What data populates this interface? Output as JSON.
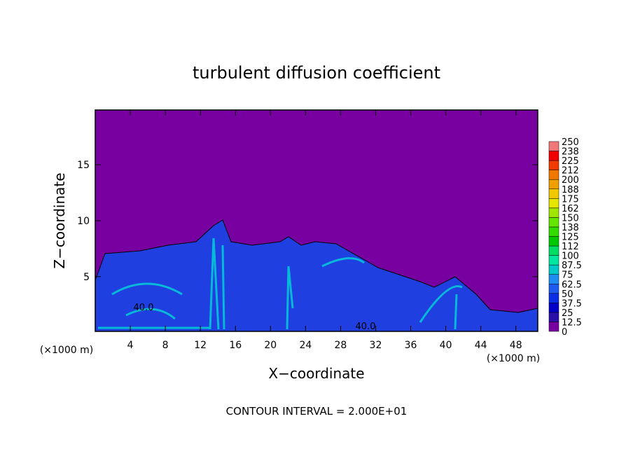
{
  "chart_data": {
    "type": "contour",
    "title": "turbulent diffusion coefficient",
    "x_label": "X−coordinate",
    "y_label": "Z−coordinate",
    "x_unit": "(×1000 m)",
    "y_unit": "(×1000 m)",
    "footer": "CONTOUR INTERVAL = 2.000E+01",
    "contour_labels": [
      "40.0",
      "40.0"
    ],
    "xlim": [
      0,
      50.5
    ],
    "ylim": [
      0.1,
      19.9
    ],
    "xticks": [
      4,
      8,
      12,
      16,
      20,
      24,
      28,
      32,
      36,
      40,
      44,
      48
    ],
    "yticks": [
      5,
      10,
      15
    ],
    "colorbar": {
      "levels": [
        0,
        12.5,
        25,
        37.5,
        50,
        62.5,
        75,
        87.5,
        100,
        112,
        125,
        138,
        150,
        162,
        175,
        188,
        200,
        212,
        225,
        238,
        250
      ],
      "colors": [
        "#7800a0",
        "#2a10a8",
        "#0000c8",
        "#0a2de6",
        "#1e5af0",
        "#1e8cf0",
        "#00c8c8",
        "#00e6a0",
        "#00dc64",
        "#00c800",
        "#32dc00",
        "#64e600",
        "#a0e600",
        "#e6e600",
        "#f0c800",
        "#f0a000",
        "#f07800",
        "#f03c00",
        "#f00000",
        "#f07878"
      ]
    }
  }
}
